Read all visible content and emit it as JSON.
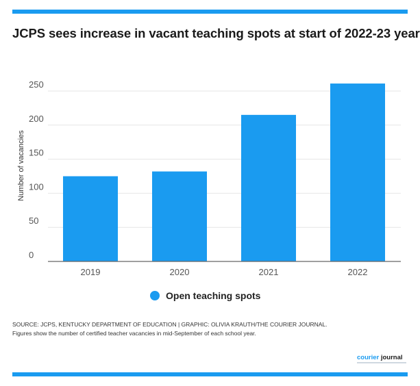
{
  "chart_data": {
    "type": "bar",
    "title": "JCPS sees increase in vacant teaching spots at start of 2022-23 year",
    "categories": [
      "2019",
      "2020",
      "2021",
      "2022"
    ],
    "series": [
      {
        "name": "Open teaching spots",
        "values": [
          125,
          132,
          215,
          261
        ]
      }
    ],
    "xlabel": "",
    "ylabel": "Number of vacancies",
    "ylim": [
      0,
      250
    ],
    "yticks": [
      "0",
      "50",
      "100",
      "150",
      "200",
      "250"
    ],
    "grid": true,
    "legend": "bottom-center",
    "bar_color": "#1a9bf0"
  },
  "footer": {
    "source": "SOURCE: JCPS, KENTUCKY DEPARTMENT OF EDUCATION | GRAPHIC: OLIVIA KRAUTH/THE COURIER JOURNAL.",
    "note": "Figures show the number of certified teacher vacancies in mid-September of each school year.",
    "logo_part1": "courier ",
    "logo_part2": "journal"
  },
  "colors": {
    "accent": "#1a9bf0"
  }
}
